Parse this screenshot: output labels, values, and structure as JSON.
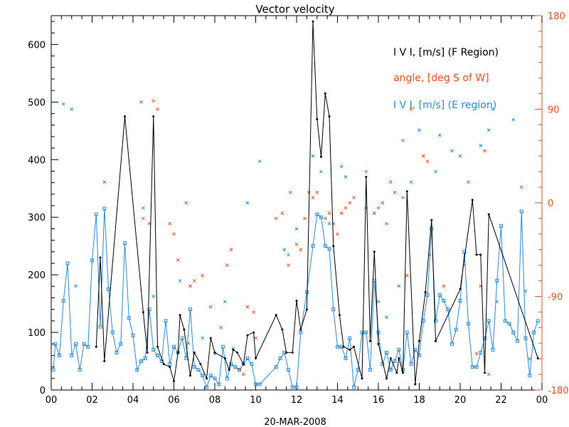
{
  "chart_data": {
    "type": "line",
    "title": "Vector velocity",
    "xlabel": "20-MAR-2008",
    "x_ticks": [
      "00",
      "02",
      "04",
      "06",
      "08",
      "10",
      "12",
      "14",
      "16",
      "18",
      "20",
      "22",
      "00"
    ],
    "xlim": [
      0,
      24
    ],
    "ylim_left": [
      0,
      650
    ],
    "y_ticks_left": [
      "0",
      "100",
      "200",
      "300",
      "400",
      "500",
      "600"
    ],
    "ylim_right": [
      -180,
      180
    ],
    "y_ticks_right": [
      "-180",
      "-90",
      "0",
      "90",
      "180"
    ],
    "colors": {
      "f_region": "#000000",
      "angle": "#e8501e",
      "e_region": "#2a8ad8",
      "right_axis": "#e8501e"
    },
    "legend": [
      {
        "label": "I V I, [m/s] (F Region)",
        "color": "#000000"
      },
      {
        "label": "angle, [deg S of W]",
        "color": "#e8501e"
      },
      {
        "label": "I V I, [m/s] (E region)",
        "color": "#2a8ad8"
      }
    ],
    "series": [
      {
        "name": "I V I, [m/s] (F Region)",
        "axis": "left",
        "style": "line+dot",
        "points": [
          [
            2.2,
            75
          ],
          [
            2.4,
            230
          ],
          [
            2.6,
            50
          ],
          [
            3.6,
            475
          ],
          [
            4.5,
            135
          ],
          [
            4.7,
            65
          ],
          [
            5.0,
            475
          ],
          [
            5.2,
            75
          ],
          [
            5.5,
            45
          ],
          [
            5.8,
            40
          ],
          [
            6.0,
            15
          ],
          [
            6.2,
            65
          ],
          [
            6.3,
            130
          ],
          [
            6.5,
            105
          ],
          [
            6.8,
            25
          ],
          [
            7.0,
            65
          ],
          [
            7.3,
            45
          ],
          [
            7.6,
            20
          ],
          [
            7.8,
            90
          ],
          [
            8.0,
            65
          ],
          [
            8.5,
            55
          ],
          [
            8.7,
            35
          ],
          [
            8.9,
            70
          ],
          [
            9.1,
            65
          ],
          [
            9.4,
            45
          ],
          [
            9.6,
            95
          ],
          [
            9.9,
            100
          ],
          [
            10.0,
            55
          ],
          [
            11.0,
            130
          ],
          [
            11.3,
            105
          ],
          [
            11.5,
            65
          ],
          [
            11.8,
            65
          ],
          [
            12.0,
            155
          ],
          [
            12.2,
            105
          ],
          [
            12.5,
            140
          ],
          [
            12.8,
            640
          ],
          [
            13.0,
            470
          ],
          [
            13.2,
            405
          ],
          [
            13.4,
            515
          ],
          [
            13.6,
            475
          ],
          [
            13.8,
            250
          ],
          [
            14.1,
            130
          ],
          [
            14.3,
            75
          ],
          [
            14.6,
            70
          ],
          [
            14.8,
            75
          ],
          [
            15.2,
            20
          ],
          [
            15.4,
            370
          ],
          [
            15.6,
            85
          ],
          [
            15.8,
            240
          ],
          [
            16.0,
            80
          ],
          [
            16.4,
            20
          ],
          [
            16.6,
            55
          ],
          [
            16.9,
            30
          ],
          [
            17.0,
            55
          ],
          [
            17.2,
            30
          ],
          [
            17.4,
            345
          ],
          [
            17.8,
            10
          ],
          [
            18.0,
            85
          ],
          [
            18.3,
            170
          ],
          [
            18.6,
            295
          ],
          [
            18.8,
            85
          ],
          [
            20.0,
            175
          ],
          [
            20.6,
            330
          ],
          [
            20.8,
            235
          ],
          [
            21.0,
            235
          ],
          [
            21.2,
            30
          ],
          [
            21.4,
            305
          ],
          [
            23.8,
            55
          ]
        ]
      },
      {
        "name": "I V I, [m/s] (E region)",
        "axis": "left",
        "style": "line+square",
        "points": [
          [
            0.1,
            35
          ],
          [
            0.2,
            80
          ],
          [
            0.4,
            60
          ],
          [
            0.6,
            155
          ],
          [
            0.8,
            220
          ],
          [
            1.0,
            60
          ],
          [
            1.2,
            80
          ],
          [
            1.4,
            35
          ],
          [
            1.6,
            80
          ],
          [
            1.8,
            75
          ],
          [
            2.0,
            225
          ],
          [
            2.2,
            305
          ],
          [
            2.4,
            110
          ],
          [
            2.6,
            315
          ],
          [
            2.8,
            175
          ],
          [
            3.0,
            100
          ],
          [
            3.2,
            65
          ],
          [
            3.4,
            80
          ],
          [
            3.6,
            255
          ],
          [
            3.8,
            125
          ],
          [
            4.0,
            95
          ],
          [
            4.2,
            35
          ],
          [
            4.4,
            50
          ],
          [
            4.6,
            55
          ],
          [
            4.8,
            140
          ],
          [
            5.0,
            70
          ],
          [
            5.2,
            60
          ],
          [
            5.4,
            50
          ],
          [
            5.6,
            120
          ],
          [
            5.8,
            45
          ],
          [
            6.0,
            75
          ],
          [
            6.2,
            65
          ],
          [
            6.4,
            90
          ],
          [
            6.6,
            55
          ],
          [
            6.8,
            140
          ],
          [
            7.0,
            40
          ],
          [
            7.2,
            35
          ],
          [
            7.4,
            25
          ],
          [
            7.6,
            5
          ],
          [
            7.8,
            25
          ],
          [
            8.0,
            20
          ],
          [
            8.2,
            10
          ],
          [
            8.4,
            75
          ],
          [
            8.6,
            20
          ],
          [
            8.8,
            45
          ],
          [
            9.0,
            40
          ],
          [
            9.2,
            35
          ],
          [
            9.4,
            45
          ],
          [
            9.6,
            55
          ],
          [
            9.8,
            45
          ],
          [
            10.0,
            10
          ],
          [
            10.2,
            10
          ],
          [
            11.0,
            40
          ],
          [
            11.2,
            55
          ],
          [
            11.4,
            65
          ],
          [
            11.6,
            35
          ],
          [
            11.8,
            5
          ],
          [
            12.0,
            5
          ],
          [
            12.2,
            100
          ],
          [
            12.5,
            170
          ],
          [
            12.8,
            250
          ],
          [
            13.0,
            305
          ],
          [
            13.2,
            300
          ],
          [
            13.4,
            250
          ],
          [
            13.6,
            245
          ],
          [
            13.8,
            140
          ],
          [
            14.0,
            75
          ],
          [
            14.2,
            75
          ],
          [
            14.4,
            55
          ],
          [
            14.6,
            90
          ],
          [
            14.8,
            5
          ],
          [
            15.0,
            35
          ],
          [
            15.2,
            100
          ],
          [
            15.4,
            100
          ],
          [
            15.6,
            35
          ],
          [
            15.8,
            190
          ],
          [
            16.0,
            100
          ],
          [
            16.2,
            45
          ],
          [
            16.4,
            65
          ],
          [
            16.6,
            35
          ],
          [
            16.8,
            50
          ],
          [
            17.0,
            70
          ],
          [
            17.2,
            35
          ],
          [
            17.4,
            100
          ],
          [
            17.6,
            45
          ],
          [
            17.8,
            70
          ],
          [
            18.0,
            60
          ],
          [
            18.2,
            120
          ],
          [
            18.4,
            165
          ],
          [
            18.6,
            280
          ],
          [
            18.8,
            120
          ],
          [
            19.0,
            165
          ],
          [
            19.2,
            155
          ],
          [
            19.4,
            140
          ],
          [
            19.6,
            80
          ],
          [
            19.8,
            105
          ],
          [
            20.0,
            155
          ],
          [
            20.2,
            240
          ],
          [
            20.4,
            115
          ],
          [
            20.6,
            40
          ],
          [
            20.8,
            40
          ],
          [
            21.0,
            65
          ],
          [
            21.2,
            90
          ],
          [
            21.4,
            120
          ],
          [
            21.6,
            70
          ],
          [
            21.8,
            190
          ],
          [
            22.0,
            285
          ],
          [
            22.2,
            120
          ],
          [
            22.4,
            115
          ],
          [
            22.6,
            100
          ],
          [
            22.8,
            85
          ],
          [
            23.0,
            310
          ],
          [
            23.2,
            90
          ],
          [
            23.4,
            25
          ],
          [
            23.6,
            100
          ],
          [
            23.8,
            120
          ]
        ]
      },
      {
        "name": "angle, [deg S of W]",
        "axis": "right",
        "style": "x-marker",
        "points": [
          [
            2.6,
            20
          ],
          [
            4.5,
            -15
          ],
          [
            5.0,
            98
          ],
          [
            5.2,
            90
          ],
          [
            4.8,
            -20
          ],
          [
            6.0,
            -30
          ],
          [
            6.2,
            -55
          ],
          [
            5.8,
            -20
          ],
          [
            6.6,
            0
          ],
          [
            6.8,
            -80
          ],
          [
            7.0,
            -75
          ],
          [
            7.4,
            -70
          ],
          [
            7.8,
            -100
          ],
          [
            8.3,
            -120
          ],
          [
            8.6,
            -60
          ],
          [
            8.8,
            -45
          ],
          [
            9.2,
            -160
          ],
          [
            9.4,
            -165
          ],
          [
            9.6,
            -100
          ],
          [
            9.9,
            -105
          ],
          [
            10.0,
            -130
          ],
          [
            11.0,
            -15
          ],
          [
            11.3,
            -10
          ],
          [
            11.6,
            -60
          ],
          [
            12.0,
            -40
          ],
          [
            12.2,
            -45
          ],
          [
            12.4,
            -15
          ],
          [
            12.6,
            10
          ],
          [
            12.8,
            5
          ],
          [
            13.0,
            10
          ],
          [
            13.4,
            -15
          ],
          [
            13.6,
            -10
          ],
          [
            13.8,
            -20
          ],
          [
            14.0,
            -30
          ],
          [
            14.2,
            -10
          ],
          [
            14.4,
            -5
          ],
          [
            14.6,
            0
          ],
          [
            14.8,
            5
          ],
          [
            15.4,
            30
          ],
          [
            15.8,
            -10
          ],
          [
            16.0,
            -5
          ],
          [
            16.2,
            0
          ],
          [
            16.4,
            -20
          ],
          [
            16.6,
            20
          ],
          [
            16.8,
            10
          ],
          [
            17.2,
            5
          ],
          [
            17.4,
            -70
          ],
          [
            17.6,
            90
          ],
          [
            18.2,
            45
          ],
          [
            18.4,
            40
          ],
          [
            19.2,
            -80
          ],
          [
            20.2,
            -60
          ],
          [
            20.8,
            -145
          ],
          [
            21.0,
            -80
          ],
          [
            21.2,
            50
          ],
          [
            21.4,
            -165
          ]
        ]
      },
      {
        "name": "angle, [deg S of W] (blue markers)",
        "axis": "right",
        "style": "x-marker-blue",
        "points": [
          [
            0.6,
            95
          ],
          [
            1.0,
            90
          ],
          [
            1.2,
            -80
          ],
          [
            4.4,
            97
          ],
          [
            4.5,
            -5
          ],
          [
            5.0,
            -90
          ],
          [
            6.3,
            -75
          ],
          [
            6.7,
            -135
          ],
          [
            7.4,
            -130
          ],
          [
            8.0,
            -145
          ],
          [
            8.5,
            -95
          ],
          [
            8.9,
            -140
          ],
          [
            9.6,
            0
          ],
          [
            10.2,
            40
          ],
          [
            11.4,
            -45
          ],
          [
            11.6,
            -50
          ],
          [
            11.7,
            10
          ],
          [
            12.0,
            -25
          ],
          [
            12.8,
            45
          ],
          [
            13.2,
            30
          ],
          [
            13.6,
            -20
          ],
          [
            14.2,
            35
          ],
          [
            14.4,
            25
          ],
          [
            15.4,
            -5
          ],
          [
            15.8,
            -10
          ],
          [
            16.0,
            -95
          ],
          [
            16.4,
            -110
          ],
          [
            17.0,
            -80
          ],
          [
            17.2,
            60
          ],
          [
            17.6,
            20
          ],
          [
            18.0,
            70
          ],
          [
            18.5,
            -50
          ],
          [
            18.8,
            30
          ],
          [
            19.0,
            65
          ],
          [
            19.6,
            50
          ],
          [
            20.0,
            45
          ],
          [
            20.4,
            20
          ],
          [
            21.0,
            55
          ],
          [
            21.4,
            70
          ],
          [
            21.6,
            90
          ],
          [
            21.8,
            -95
          ],
          [
            22.6,
            80
          ],
          [
            23.0,
            15
          ],
          [
            23.2,
            -85
          ],
          [
            23.4,
            -150
          ]
        ]
      }
    ]
  }
}
